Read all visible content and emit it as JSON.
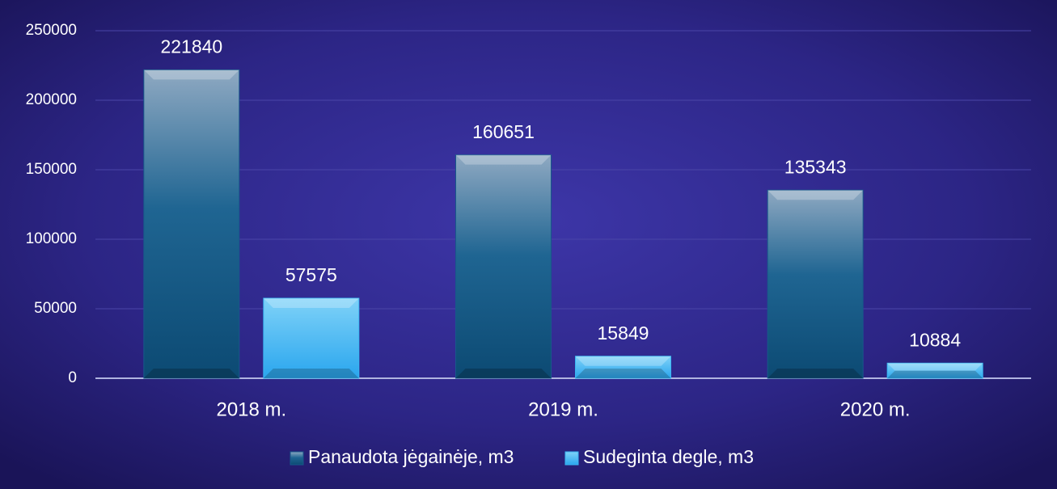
{
  "chart_data": {
    "type": "bar",
    "categories": [
      "2018 m.",
      "2019 m.",
      "2020 m."
    ],
    "series": [
      {
        "name": "Panaudota jėgainėje, m3",
        "color": "#17598a",
        "values": [
          221840,
          160651,
          135343
        ]
      },
      {
        "name": "Sudeginta degle, m3",
        "color": "#3ab6f2",
        "values": [
          57575,
          15849,
          10884
        ]
      }
    ],
    "ylim": [
      0,
      250000
    ],
    "yticks": [
      0,
      50000,
      100000,
      150000,
      200000,
      250000
    ],
    "grid": true,
    "legend": "bottom"
  }
}
